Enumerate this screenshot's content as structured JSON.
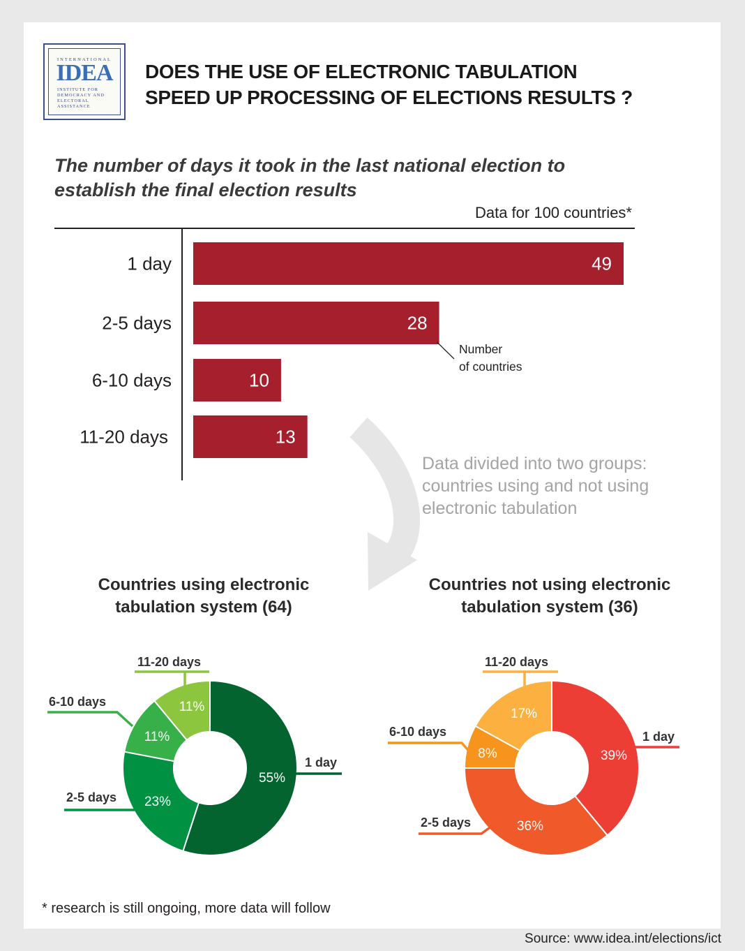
{
  "logo": {
    "top_text": "INTERNATIONAL",
    "mark": "IDEA",
    "bottom_text": "INSTITUTE FOR\nDEMOCRACY AND\nELECTORAL\nASSISTANCE"
  },
  "header": {
    "title": "DOES THE USE OF ELECTRONIC TABULATION\nSPEED UP PROCESSING OF ELECTIONS RESULTS ?"
  },
  "chart_data": [
    {
      "type": "bar",
      "orientation": "horizontal",
      "title": "The number of days it took in the last national election to\nestablish the final election results",
      "note": "Data for 100 countries*",
      "categories": [
        "1 day",
        "2-5 days",
        "6-10 days",
        "11-20 days"
      ],
      "values": [
        49,
        28,
        10,
        13
      ],
      "value_label": "Number\nof countries",
      "xlim": [
        0,
        49
      ],
      "color": "#a51f2d"
    },
    {
      "type": "pie",
      "title": "Countries using electronic\ntabulation system (64)",
      "slices": [
        {
          "label": "1 day",
          "value": 55,
          "color": "#04642f"
        },
        {
          "label": "2-5 days",
          "value": 23,
          "color": "#009143"
        },
        {
          "label": "6-10 days",
          "value": 11,
          "color": "#38b04a"
        },
        {
          "label": "11-20 days",
          "value": 11,
          "color": "#8cc63f"
        }
      ]
    },
    {
      "type": "pie",
      "title": "Countries not using electronic\ntabulation system (36)",
      "slices": [
        {
          "label": "1 day",
          "value": 39,
          "color": "#ec3e35"
        },
        {
          "label": "2-5 days",
          "value": 36,
          "color": "#f05a2b"
        },
        {
          "label": "6-10 days",
          "value": 8,
          "color": "#f7941d"
        },
        {
          "label": "11-20 days",
          "value": 17,
          "color": "#fbb040"
        }
      ]
    }
  ],
  "divide_note": "Data divided into two groups:\ncountries using and not using\nelectronic tabulation",
  "footnote": "* research is still ongoing, more data will follow",
  "source": "Source: www.idea.int/elections/ict"
}
